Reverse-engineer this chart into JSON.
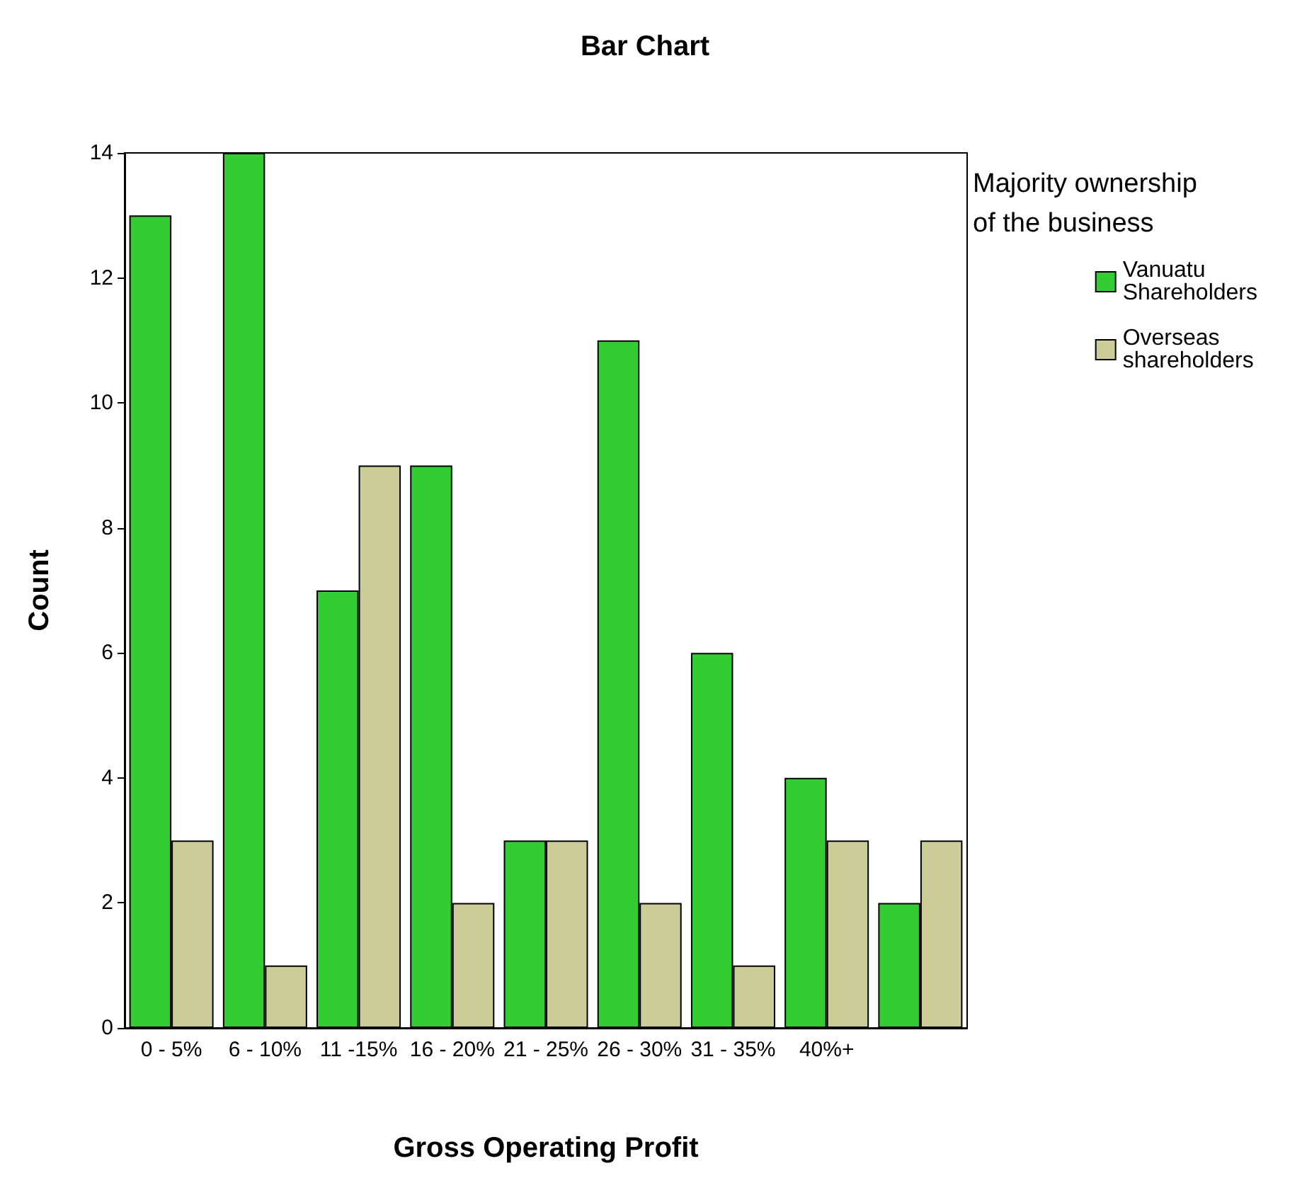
{
  "chart_data": {
    "type": "bar",
    "title": "Bar Chart",
    "xlabel": "Gross Operating Profit",
    "ylabel": "Count",
    "legend_title": "Majority ownership of the business",
    "categories": [
      "0 - 5%",
      "6 - 10%",
      "11 -15%",
      "16 - 20%",
      "21 - 25%",
      "26 - 30%",
      "31 - 35%",
      "40%+",
      null
    ],
    "series": [
      {
        "name": "Vanuatu Shareholders",
        "color": "#33cc33",
        "values": [
          13,
          14,
          7,
          9,
          3,
          11,
          6,
          4,
          2
        ]
      },
      {
        "name": "Overseas shareholders",
        "color": "#cccc99",
        "values": [
          3,
          1,
          9,
          2,
          3,
          2,
          1,
          3,
          3
        ]
      }
    ],
    "ylim": [
      0,
      14
    ],
    "yticks": [
      0,
      2,
      4,
      6,
      8,
      10,
      12,
      14
    ],
    "grid": false,
    "legend": "top right"
  }
}
